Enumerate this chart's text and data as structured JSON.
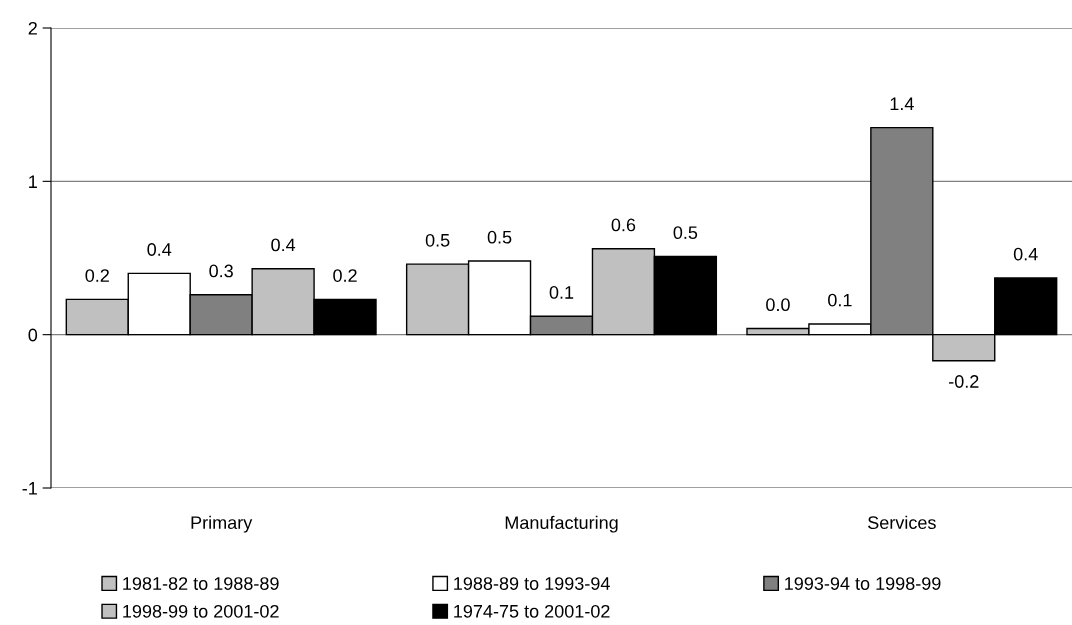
{
  "chart_data": {
    "type": "bar",
    "categories": [
      "Primary",
      "Manufacturing",
      "Services"
    ],
    "series": [
      {
        "name": "1981-82 to 1988-89",
        "color": "#c0c0c0",
        "values": [
          0.23,
          0.46,
          0.04
        ],
        "value_labels": [
          "0.2",
          "0.5",
          "0.0"
        ]
      },
      {
        "name": "1988-89 to 1993-94",
        "color": "#ffffff",
        "values": [
          0.4,
          0.48,
          0.07
        ],
        "value_labels": [
          "0.4",
          "0.5",
          "0.1"
        ]
      },
      {
        "name": "1993-94 to 1998-99",
        "color": "#808080",
        "values": [
          0.26,
          0.12,
          1.35
        ],
        "value_labels": [
          "0.3",
          "0.1",
          "1.4"
        ]
      },
      {
        "name": "1998-99 to 2001-02",
        "color": "#c0c0c0",
        "values": [
          0.43,
          0.56,
          -0.17
        ],
        "value_labels": [
          "0.4",
          "0.6",
          "-0.2"
        ]
      },
      {
        "name": "1974-75 to 2001-02",
        "color": "#000000",
        "values": [
          0.23,
          0.51,
          0.37
        ],
        "value_labels": [
          "0.2",
          "0.5",
          "0.4"
        ]
      }
    ],
    "ylim": [
      -1,
      2
    ],
    "yticks": [
      -1,
      0,
      1,
      2
    ],
    "grid": "y",
    "legend": "bottom"
  }
}
